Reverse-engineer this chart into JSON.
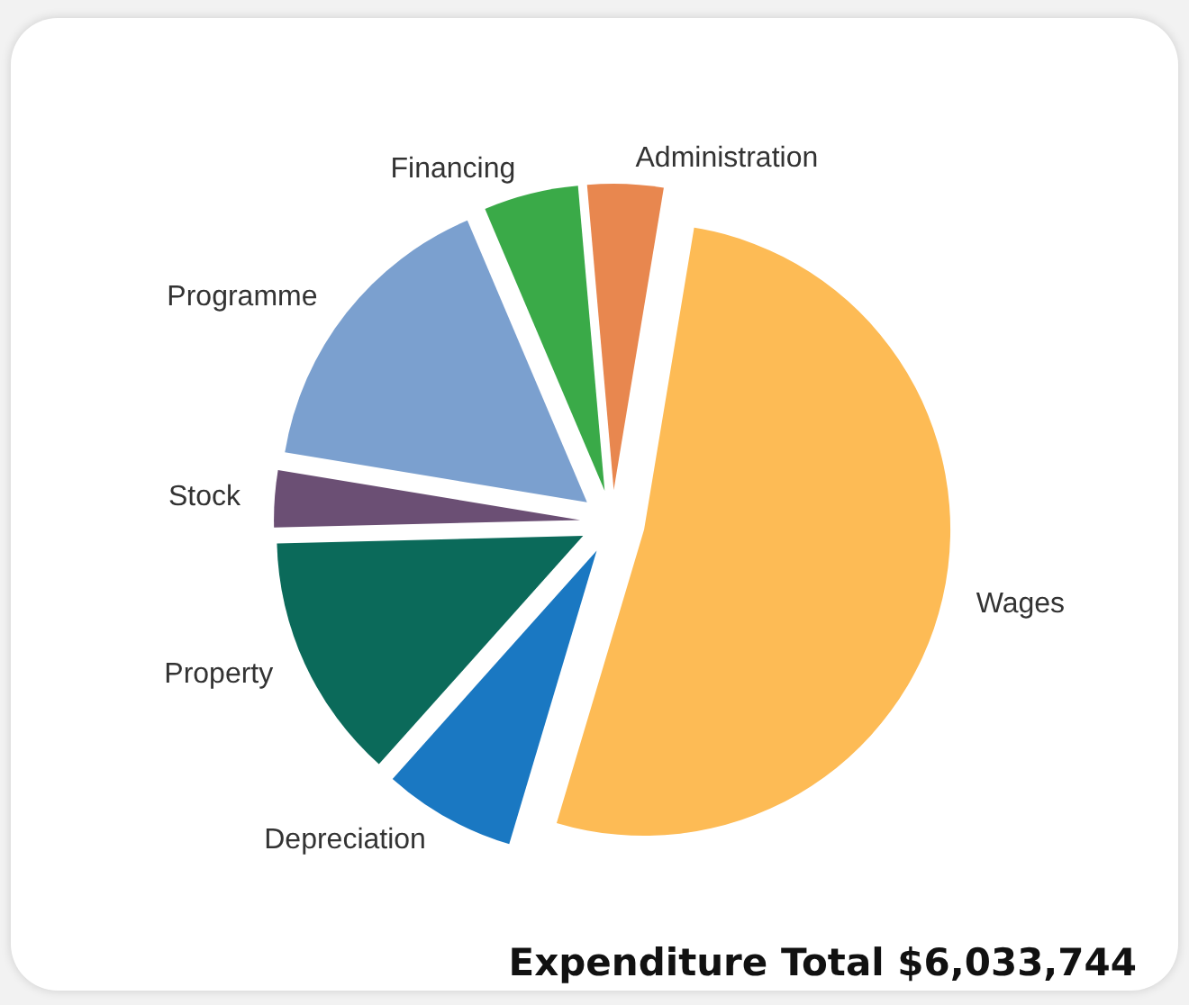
{
  "chart_data": {
    "type": "pie",
    "title": "Expenditure Total $6,033,744",
    "categories": [
      "Administration",
      "Wages",
      "Depreciation",
      "Property",
      "Stock",
      "Programme",
      "Financing"
    ],
    "values": [
      4,
      52,
      7,
      13,
      3,
      16,
      5
    ],
    "colors": [
      "#e8874f",
      "#fdbb55",
      "#1a78c2",
      "#0b6a5a",
      "#6b4f74",
      "#7ba0cf",
      "#3aaa48"
    ]
  }
}
